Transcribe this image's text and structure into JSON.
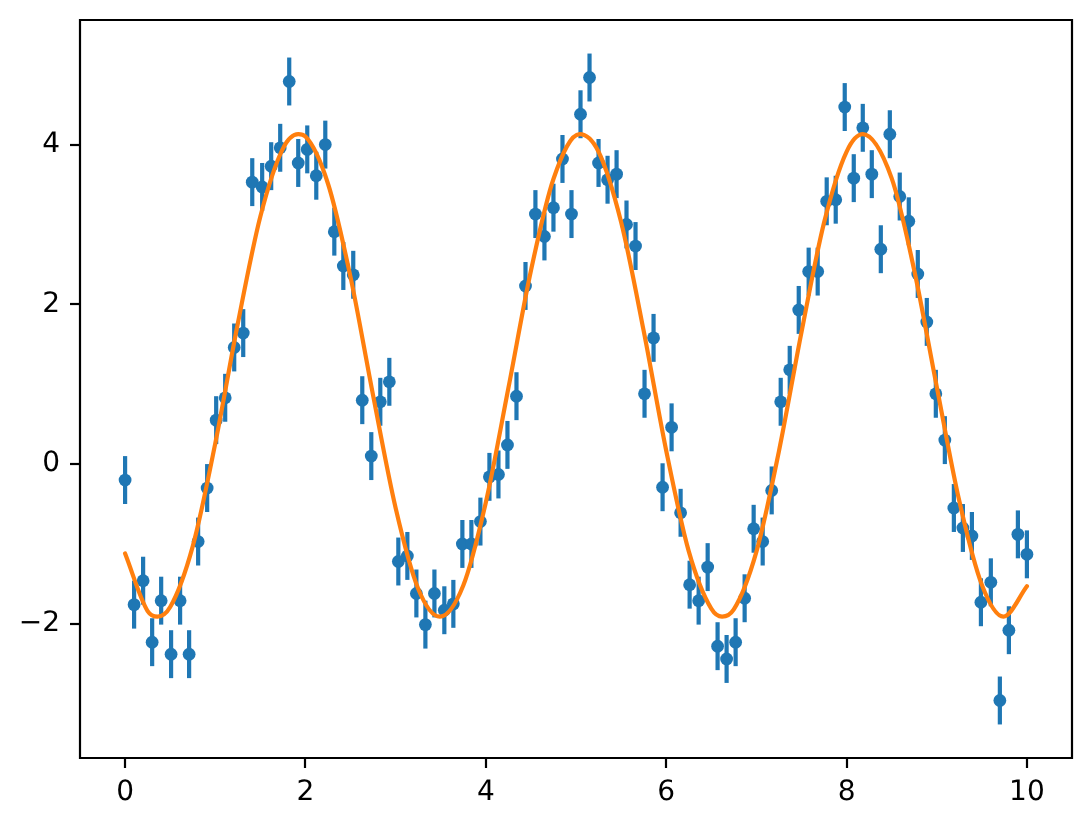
{
  "chart_data": {
    "type": "scatter",
    "xlim": [
      -0.5,
      10.5
    ],
    "ylim": [
      -3.68,
      5.56
    ],
    "xticks": [
      0,
      2,
      4,
      6,
      8,
      10
    ],
    "yticks": [
      {
        "value": -2,
        "label": "−2"
      },
      0,
      2,
      4
    ],
    "grid": false,
    "legend": false,
    "series": [
      {
        "type": "scatter",
        "color": "#1f77b4",
        "marker": "circle",
        "x": [
          0,
          0.1,
          0.2,
          0.3,
          0.4,
          0.51,
          0.61,
          0.71,
          0.81,
          0.91,
          1.01,
          1.11,
          1.21,
          1.31,
          1.41,
          1.52,
          1.62,
          1.72,
          1.82,
          1.92,
          2.02,
          2.12,
          2.22,
          2.32,
          2.42,
          2.53,
          2.63,
          2.73,
          2.83,
          2.93,
          3.03,
          3.13,
          3.23,
          3.33,
          3.43,
          3.54,
          3.64,
          3.74,
          3.84,
          3.94,
          4.04,
          4.14,
          4.24,
          4.34,
          4.44,
          4.55,
          4.65,
          4.75,
          4.85,
          4.95,
          5.05,
          5.15,
          5.25,
          5.35,
          5.45,
          5.56,
          5.66,
          5.76,
          5.86,
          5.96,
          6.06,
          6.16,
          6.26,
          6.36,
          6.46,
          6.57,
          6.67,
          6.77,
          6.87,
          6.97,
          7.07,
          7.17,
          7.27,
          7.37,
          7.47,
          7.58,
          7.68,
          7.78,
          7.88,
          7.98,
          8.08,
          8.18,
          8.28,
          8.38,
          8.48,
          8.59,
          8.69,
          8.79,
          8.89,
          8.99,
          9.09,
          9.19,
          9.29,
          9.39,
          9.49,
          9.6,
          9.7,
          9.8,
          9.9,
          10
        ],
        "values": [
          -0.2,
          -1.76,
          -1.46,
          -2.23,
          -1.71,
          -2.38,
          -1.71,
          -2.38,
          -0.97,
          -0.3,
          0.55,
          0.83,
          1.46,
          1.64,
          3.53,
          3.47,
          3.73,
          3.96,
          4.79,
          3.77,
          3.94,
          3.61,
          4.0,
          2.91,
          2.48,
          2.37,
          0.8,
          0.1,
          0.78,
          1.03,
          -1.22,
          -1.15,
          -1.62,
          -2.01,
          -1.62,
          -1.83,
          -1.75,
          -1.0,
          -1.0,
          -0.72,
          -0.16,
          -0.13,
          0.24,
          0.85,
          2.23,
          3.13,
          2.85,
          3.21,
          3.82,
          3.13,
          4.38,
          4.84,
          3.77,
          3.56,
          3.63,
          3.0,
          2.73,
          0.88,
          1.58,
          -0.29,
          0.46,
          -0.61,
          -1.51,
          -1.71,
          -1.29,
          -2.28,
          -2.44,
          -2.23,
          -1.68,
          -0.81,
          -0.97,
          -0.33,
          0.78,
          1.18,
          1.93,
          2.41,
          2.41,
          3.29,
          3.31,
          4.47,
          3.58,
          4.21,
          3.63,
          2.69,
          4.13,
          3.35,
          3.04,
          2.38,
          1.78,
          0.88,
          0.3,
          -0.55,
          -0.8,
          -0.9,
          -1.73,
          -1.48,
          -2.96,
          -2.08,
          -0.88,
          -1.13
        ],
        "errors": [
          0.3,
          0.3,
          0.3,
          0.3,
          0.3,
          0.3,
          0.3,
          0.3,
          0.3,
          0.3,
          0.3,
          0.3,
          0.3,
          0.3,
          0.3,
          0.3,
          0.3,
          0.3,
          0.3,
          0.3,
          0.3,
          0.3,
          0.3,
          0.3,
          0.3,
          0.3,
          0.3,
          0.3,
          0.3,
          0.3,
          0.3,
          0.3,
          0.3,
          0.3,
          0.3,
          0.3,
          0.3,
          0.3,
          0.3,
          0.3,
          0.3,
          0.3,
          0.3,
          0.3,
          0.3,
          0.3,
          0.3,
          0.3,
          0.3,
          0.3,
          0.3,
          0.3,
          0.3,
          0.3,
          0.3,
          0.3,
          0.3,
          0.3,
          0.3,
          0.3,
          0.3,
          0.3,
          0.3,
          0.3,
          0.3,
          0.3,
          0.3,
          0.3,
          0.3,
          0.3,
          0.3,
          0.3,
          0.3,
          0.3,
          0.3,
          0.3,
          0.3,
          0.3,
          0.3,
          0.3,
          0.3,
          0.3,
          0.3,
          0.3,
          0.3,
          0.3,
          0.3,
          0.3,
          0.3,
          0.3,
          0.3,
          0.3,
          0.3,
          0.3,
          0.3,
          0.3,
          0.3,
          0.3,
          0.3,
          0.3
        ]
      },
      {
        "type": "line",
        "color": "#ff7f0e",
        "marker": "none",
        "line_style": "solid",
        "x": [
          0,
          0.25,
          0.36,
          0.5,
          0.75,
          1,
          1.25,
          1.5,
          1.75,
          1.92,
          2,
          2.25,
          2.5,
          2.75,
          3,
          3.25,
          3.49,
          3.75,
          4,
          4.25,
          4.5,
          4.75,
          5.04,
          5.25,
          5.5,
          5.75,
          6,
          6.25,
          6.5,
          6.62,
          6.75,
          7,
          7.25,
          7.5,
          7.75,
          8,
          8.18,
          8.5,
          8.75,
          9,
          9.25,
          9.5,
          9.74,
          10
        ],
        "values": [
          -1.12,
          -1.84,
          -1.91,
          -1.79,
          -1.03,
          0.26,
          1.76,
          3.1,
          3.95,
          4.13,
          4.1,
          3.51,
          2.34,
          0.86,
          -0.55,
          -1.56,
          -1.91,
          -1.52,
          -0.48,
          0.95,
          2.42,
          3.57,
          4.13,
          3.91,
          3.03,
          1.67,
          0.17,
          -1.09,
          -1.81,
          -1.91,
          -1.82,
          -1.1,
          0.16,
          1.65,
          3.02,
          3.91,
          4.13,
          3.58,
          2.43,
          0.97,
          -0.46,
          -1.51,
          -1.91,
          -1.53
        ]
      }
    ]
  }
}
